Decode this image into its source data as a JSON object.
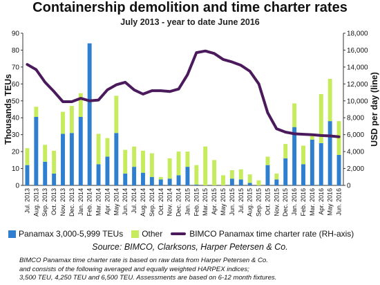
{
  "chart_data": {
    "type": "bar",
    "title": "Containership demolition and time charter rates",
    "subtitle": "July 2013 - year to date June 2016",
    "ylabel": "Thousands TEUs",
    "y2label": "USD per day (line)",
    "ylim": [
      0,
      90
    ],
    "y2lim": [
      0,
      18000
    ],
    "yticks": [
      0,
      10,
      20,
      30,
      40,
      50,
      60,
      70,
      80,
      90
    ],
    "y2ticks": [
      "0",
      "2,000",
      "4,000",
      "6,000",
      "8,000",
      "10,000",
      "12,000",
      "14,000",
      "16,000",
      "18,000"
    ],
    "grid": false,
    "legend_position": "bottom",
    "categories": [
      "Jul. 2013",
      "Aug. 2013",
      "Sep. 2013",
      "Oct. 2013",
      "Nov. 2013",
      "Dec. 2013",
      "Jan. 2014",
      "Feb. 2014",
      "Mar. 2014",
      "Apr. 2014",
      "May 2014",
      "Jun. 2014",
      "Jul. 2014",
      "Aug. 2014",
      "Sep. 2014",
      "Oct. 2014",
      "Nov. 2014",
      "Dec. 2014",
      "Jan. 2015",
      "Feb. 2015",
      "Mar. 2015",
      "Apr. 2015",
      "May 2015",
      "Jun. 2015",
      "Jul. 2015",
      "Aug. 2015",
      "Sep. 2015",
      "Oct. 2015",
      "Nov. 2015",
      "Dec. 2015",
      "Jan. 2016",
      "Feb. 2016",
      "Mar. 2016",
      "Apr. 2016",
      "May 2016",
      "Jun. 2016"
    ],
    "tick_labels": [
      "Jul. 2013",
      "Aug. 2013",
      "Sep. 2013",
      "Oct. 2013",
      "Nov. 2013",
      "Dec. 2013",
      "Jan. 2014",
      "Feb. 2014",
      "Mar. 2014",
      "Apr. 2014",
      "May 2014",
      "Jun. 2014",
      "Jul. 2014",
      "Aug. 2014",
      "Sep. 2014",
      "Oct. 2014",
      "Nov. 2014",
      "Dec. 2014",
      "Jan. 2015",
      "Feb. 2015",
      "Mar. 2015",
      "Apr. 2015",
      "May 2015",
      "Jun. 2015",
      "Jul. 2015",
      "Aug. 2015",
      "Sep. 2015",
      "Oct. 2015",
      "Nov. 2015",
      "Dec. 2015",
      "Jan. 2016",
      "Feb. 2016",
      "Mar. 2016",
      "Apr. 2016",
      "May 2016",
      "Jun. 2016"
    ],
    "series": [
      {
        "name": "Panamax 3,000-5,999 TEUs",
        "kind": "bar",
        "color": "#2f7fd0",
        "values": [
          12,
          40.5,
          14,
          7,
          30.5,
          31,
          40.5,
          84,
          12.5,
          17,
          31,
          7,
          11,
          7.5,
          5,
          3.5,
          4,
          6,
          11,
          0.5,
          0,
          0,
          0,
          4,
          3.5,
          1.5,
          0,
          12,
          3.5,
          16,
          34.5,
          12.5,
          27,
          25,
          38,
          18
        ]
      },
      {
        "name": "Other",
        "kind": "stacked-bar",
        "color": "#c6ec5e",
        "values": [
          10,
          6,
          10,
          13.5,
          13,
          16,
          14,
          0,
          18,
          11,
          22,
          14,
          12,
          13,
          14,
          1.5,
          12,
          14,
          9,
          11.5,
          23,
          15,
          6,
          5,
          6,
          5,
          3,
          5,
          3.5,
          8.5,
          14,
          11,
          3,
          29,
          25,
          20
        ]
      },
      {
        "name": "BIMCO Panamax time charter rate (RH-axis)",
        "kind": "line",
        "axis": "right",
        "color": "#4b1a5c",
        "values": [
          14300,
          13700,
          12200,
          11100,
          9900,
          9900,
          10300,
          10000,
          10100,
          11300,
          11900,
          12200,
          11300,
          10800,
          11200,
          11200,
          11100,
          11400,
          13100,
          15700,
          15900,
          15600,
          14900,
          14600,
          14200,
          13500,
          12000,
          8600,
          6700,
          6300,
          6100,
          6050,
          6000,
          5900,
          5850,
          5750
        ]
      }
    ]
  },
  "legend": {
    "bar1": "Panamax 3,000-5,999 TEUs",
    "bar2": "Other",
    "line": "BIMCO Panamax time charter rate (RH-axis)"
  },
  "source": "Source: BIMCO, Clarksons, Harper Petersen & Co.",
  "note": [
    "BIMCO Panamax time charter rate is based on raw data from Harper Petersen & Co.",
    "and consists of the following averaged and equally weighted HARPEX indices;",
    "3,500 TEU, 4,250 TEU and 6,500 TEU. Assessments are based on 6-12 month fixtures."
  ],
  "colors": {
    "bar_panamax": "#2f7fd0",
    "bar_other": "#c6ec5e",
    "line": "#4b1a5c"
  }
}
